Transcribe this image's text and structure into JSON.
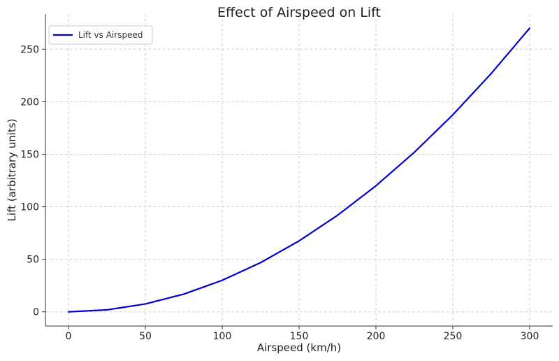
{
  "chart_data": {
    "type": "line",
    "title": "Effect of Airspeed on Lift",
    "xlabel": "Airspeed (km/h)",
    "ylabel": "Lift (arbitrary units)",
    "xlim": [
      -15,
      315
    ],
    "ylim": [
      -13.5,
      283.5
    ],
    "xticks": [
      0,
      50,
      100,
      150,
      200,
      250,
      300
    ],
    "yticks": [
      0,
      50,
      100,
      150,
      200,
      250
    ],
    "grid": true,
    "legend_position": "top-left",
    "series": [
      {
        "name": "Lift vs Airspeed",
        "color": "#0000cd",
        "x": [
          0,
          25,
          50,
          75,
          100,
          125,
          150,
          175,
          200,
          225,
          250,
          275,
          300
        ],
        "y": [
          0,
          1.875,
          7.5,
          16.875,
          30,
          46.875,
          67.5,
          91.875,
          120,
          151.875,
          187.5,
          226.875,
          270
        ]
      }
    ]
  }
}
